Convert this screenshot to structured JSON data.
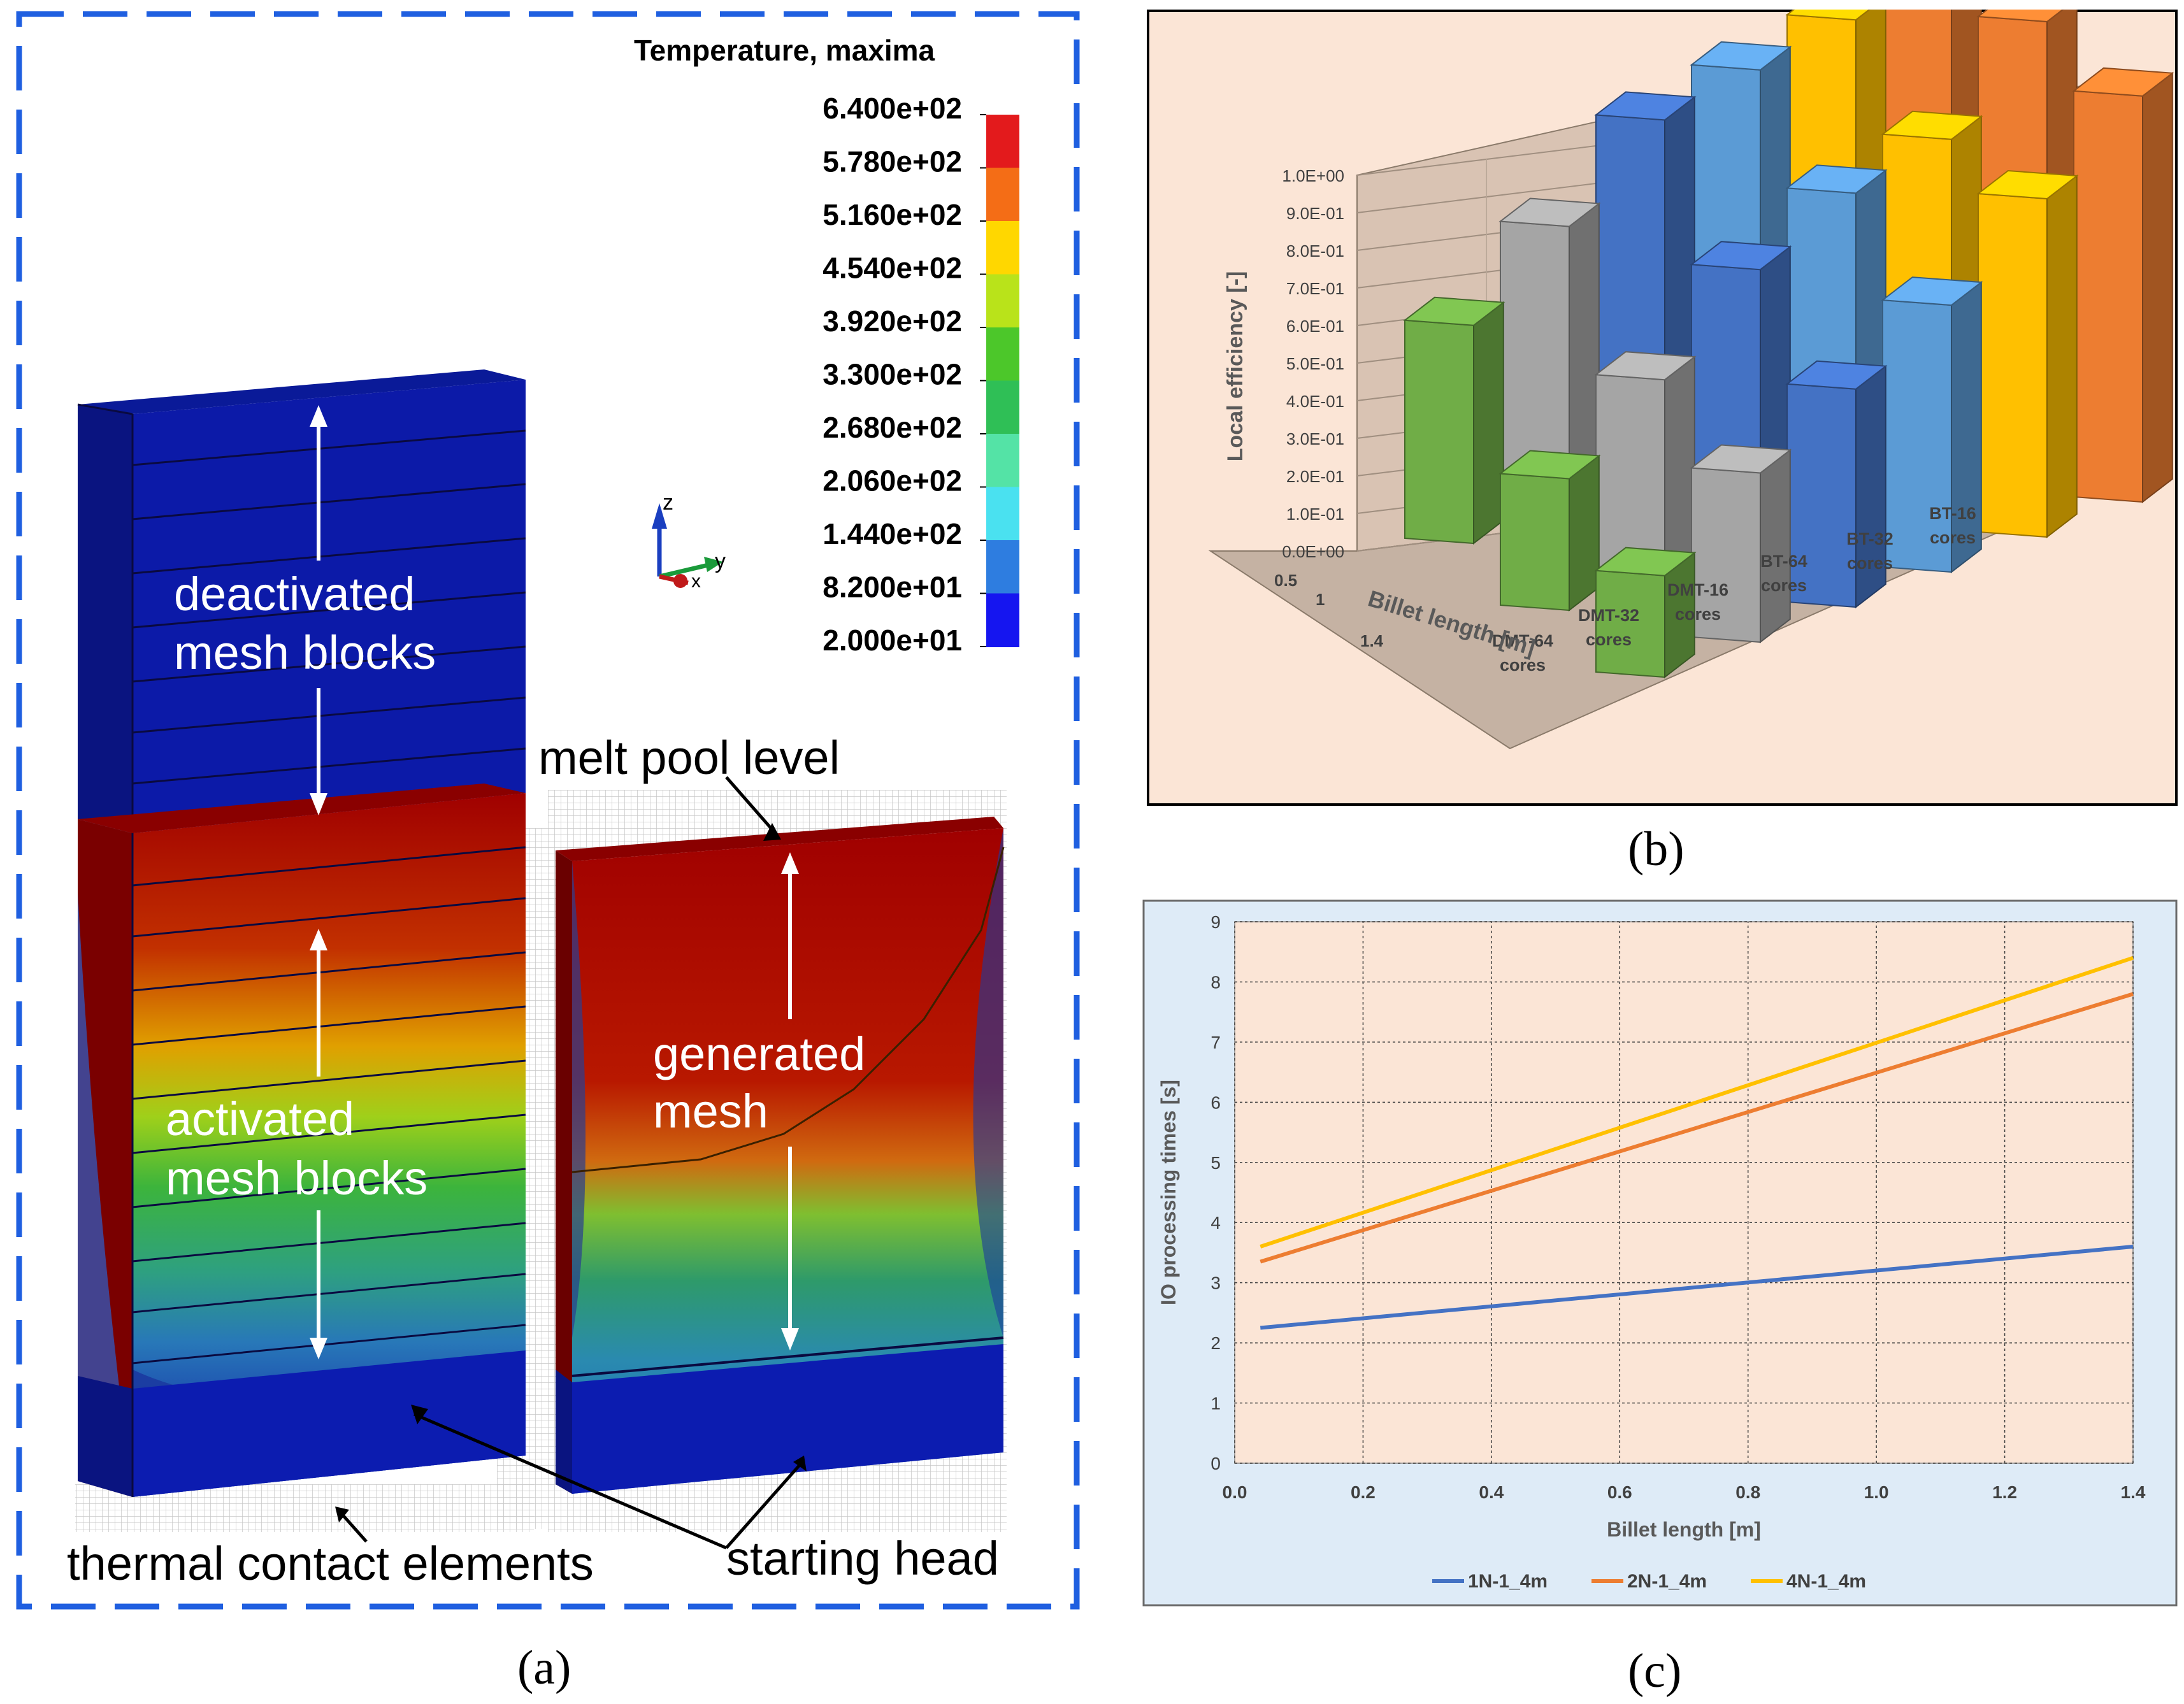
{
  "captions": {
    "a": "(a)",
    "b": "(b)",
    "c": "(c)"
  },
  "panel_a": {
    "legend_title": "Temperature, maxima",
    "legend_values": [
      "6.400e+02",
      "5.780e+02",
      "5.160e+02",
      "4.540e+02",
      "3.920e+02",
      "3.300e+02",
      "2.680e+02",
      "2.060e+02",
      "1.440e+02",
      "8.200e+01",
      "2.000e+01"
    ],
    "legend_colors": [
      "#e31a1c",
      "#f46d16",
      "#ffd700",
      "#b9e31a",
      "#4cc72a",
      "#2fbf56",
      "#54e3a6",
      "#4ae1f0",
      "#2e7de0",
      "#1515f0"
    ],
    "axis_labels": {
      "z": "z",
      "y": "y",
      "x": "x"
    },
    "labels": {
      "deactivated_line1": "deactivated",
      "deactivated_line2": "mesh blocks",
      "activated_line1": "activated",
      "activated_line2": "mesh blocks",
      "generated_line1": "generated",
      "generated_line2": "mesh",
      "melt_pool": "melt pool level",
      "thermal_contact": "thermal contact elements",
      "starting_head": "starting head"
    },
    "colors": {
      "frame": "#1f5fe0",
      "blue": "#0a1aa0",
      "red": "#a00000"
    }
  },
  "chart_data": [
    {
      "type": "bar",
      "id": "local-efficiency-3d",
      "ylabel": "Local efficiency [-]",
      "xlabel": "Billet length [m]",
      "ylim": [
        0,
        1.0
      ],
      "yticks": [
        "1.0E+00",
        "9.0E-01",
        "8.0E-01",
        "7.0E-01",
        "6.0E-01",
        "5.0E-01",
        "4.0E-01",
        "3.0E-01",
        "2.0E-01",
        "1.0E-01",
        "0.0E+00"
      ],
      "categories": [
        "0.5",
        "1",
        "1.4"
      ],
      "series": [
        {
          "name": "DMT-64 cores",
          "values": [
            0.58,
            0.35,
            0.27
          ],
          "color": "#70ad47"
        },
        {
          "name": "DMT-32 cores",
          "values": [
            0.75,
            0.52,
            0.45
          ],
          "color": "#a5a5a5"
        },
        {
          "name": "DMT-16 cores",
          "values": [
            0.94,
            0.72,
            0.58
          ],
          "color": "#4472c4"
        },
        {
          "name": "BT-64 cores",
          "values": [
            0.98,
            0.83,
            0.71
          ],
          "color": "#5b9bd5"
        },
        {
          "name": "BT-32 cores",
          "values": [
            1.02,
            0.88,
            0.9
          ],
          "color": "#ffc000"
        },
        {
          "name": "BT-16 cores",
          "values": [
            1.13,
            1.1,
            1.08
          ],
          "color": "#ed7d31"
        }
      ],
      "series_labels": [
        {
          "line1": "DMT-64",
          "line2": "cores"
        },
        {
          "line1": "DMT-32",
          "line2": "cores"
        },
        {
          "line1": "DMT-16",
          "line2": "cores"
        },
        {
          "line1": "BT-64",
          "line2": "cores"
        },
        {
          "line1": "BT-32",
          "line2": "cores"
        },
        {
          "line1": "BT-16",
          "line2": "cores"
        }
      ],
      "background": "#fbe5d6"
    },
    {
      "type": "line",
      "id": "io-processing-times",
      "xlabel": "Billet length [m]",
      "ylabel": "IO processing times [s]",
      "xlim": [
        0,
        1.4
      ],
      "ylim": [
        0,
        9
      ],
      "xticks": [
        "0.0",
        "0.2",
        "0.4",
        "0.6",
        "0.8",
        "1.0",
        "1.2",
        "1.4"
      ],
      "yticks": [
        "0",
        "1",
        "2",
        "3",
        "4",
        "5",
        "6",
        "7",
        "8",
        "9"
      ],
      "grid": true,
      "legend_position": "bottom",
      "series": [
        {
          "name": "1N-1_4m",
          "x": [
            0.04,
            1.4
          ],
          "y": [
            2.25,
            3.6
          ],
          "color": "#4472c4"
        },
        {
          "name": "2N-1_4m",
          "x": [
            0.04,
            1.4
          ],
          "y": [
            3.35,
            7.8
          ],
          "color": "#ed7d31"
        },
        {
          "name": "4N-1_4m",
          "x": [
            0.04,
            1.4
          ],
          "y": [
            3.6,
            8.4
          ],
          "color": "#ffc000"
        }
      ],
      "background": "#deebf7",
      "plot_background": "#fbe5d6"
    }
  ]
}
